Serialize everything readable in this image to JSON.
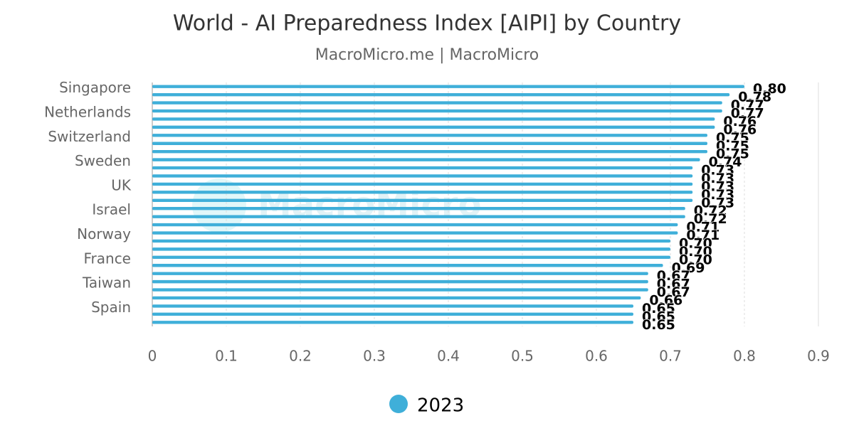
{
  "chart_data": {
    "type": "barh",
    "title": "World - AI Preparedness Index [AIPI] by Country",
    "subtitle": "MacroMicro.me | MacroMicro",
    "watermark": "MacroMicro",
    "categories": [
      "Singapore",
      null,
      null,
      "Netherlands",
      null,
      null,
      "Switzerland",
      null,
      null,
      "Sweden",
      null,
      null,
      "UK",
      null,
      null,
      "Israel",
      null,
      null,
      "Norway",
      null,
      null,
      "France",
      null,
      null,
      "Taiwan",
      null,
      null,
      "Spain",
      null,
      null
    ],
    "series": [
      {
        "name": "2023",
        "color": "#3fafd9",
        "values": [
          0.8,
          0.78,
          0.77,
          0.77,
          0.76,
          0.76,
          0.75,
          0.75,
          0.75,
          0.74,
          0.73,
          0.73,
          0.73,
          0.73,
          0.73,
          0.72,
          0.72,
          0.71,
          0.71,
          0.7,
          0.7,
          0.7,
          0.69,
          0.67,
          0.67,
          0.67,
          0.66,
          0.65,
          0.65,
          0.65
        ],
        "value_labels": [
          "0.80",
          "0.78",
          "0.77",
          "0.77",
          "0.76",
          "0.76",
          "0.75",
          "0.75",
          "0.75",
          "0.74",
          "0.73",
          "0.73",
          "0.73",
          "0.73",
          "0.73",
          "0.72",
          "0.72",
          "0.71",
          "0.71",
          "0.70",
          "0.70",
          "0.70",
          "0.69",
          "0.67",
          "0.67",
          "0.67",
          "0.66",
          "0.65",
          "0.65",
          "0.65"
        ]
      }
    ],
    "xlim": [
      0,
      0.9
    ],
    "xticks": [
      0,
      0.1,
      0.2,
      0.3,
      0.4,
      0.5,
      0.6,
      0.7,
      0.8,
      0.9
    ],
    "grid": true,
    "legend": "bottom"
  }
}
